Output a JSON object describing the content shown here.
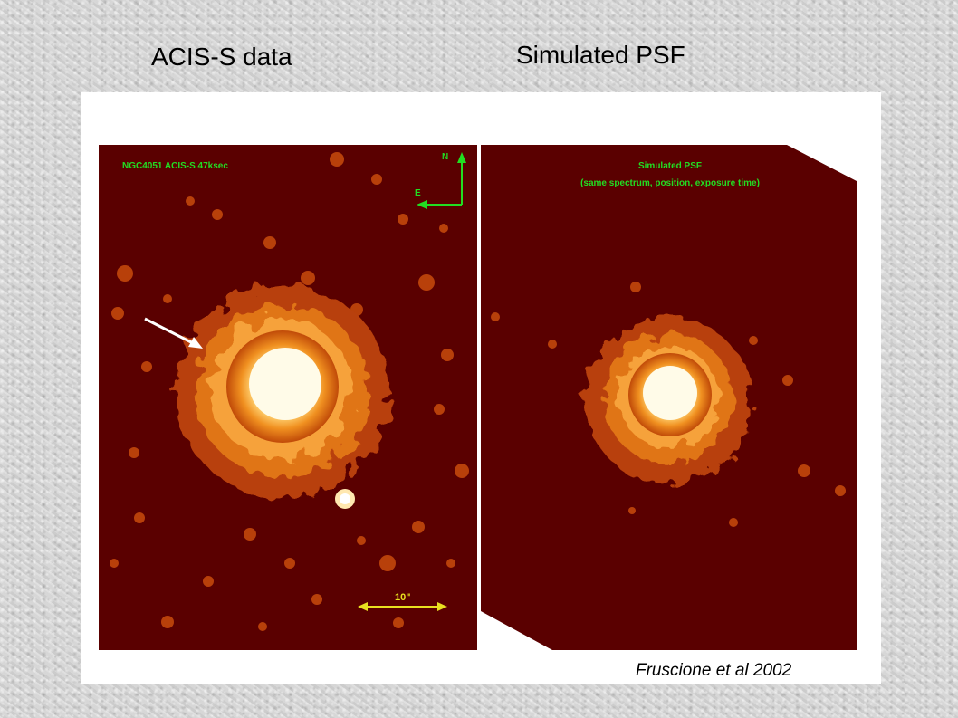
{
  "slide": {
    "title_left": "ACIS-S data",
    "title_right": "Simulated PSF",
    "credit": "Fruscione et al 2002"
  },
  "figure": {
    "left_panel": {
      "label": "NGC4051 ACIS-S 47ksec",
      "compass_north": "N",
      "compass_east": "E",
      "scale_label": "10\""
    },
    "right_panel": {
      "label_line1": "Simulated PSF",
      "label_line2": "(same spectrum, position, exposure time)"
    },
    "colors": {
      "background": "#5a0000",
      "label_green": "#22dd22",
      "scale_yellow": "#e8e020",
      "arrow_white": "#ffffff"
    }
  }
}
